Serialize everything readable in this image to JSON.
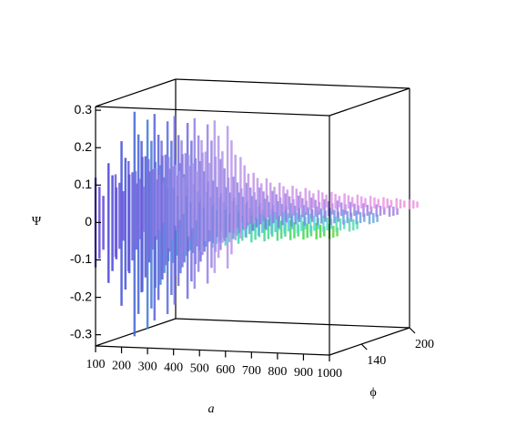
{
  "chart_data": {
    "type": "surface3d",
    "x_label": "a",
    "y_label": "ϕ",
    "z_label": "Ψ",
    "x": [
      100,
      150,
      200,
      250,
      300,
      350,
      400,
      450,
      500,
      550,
      600,
      650,
      700,
      750,
      800,
      850,
      900,
      950,
      1000
    ],
    "phi": [
      100,
      125,
      150,
      175,
      200
    ],
    "values": [
      0.12,
      0.16,
      0.22,
      0.3,
      0.28,
      0.16,
      0.1,
      0.08,
      0.065,
      0.055,
      0.048,
      0.042,
      0.037,
      0.033,
      0.03,
      0.027,
      0.024,
      0.022,
      0.02
    ],
    "xlim": [
      100,
      1000
    ],
    "ylim": [
      100,
      200
    ],
    "zlim": [
      -0.33,
      0.31
    ],
    "xticks": [
      100,
      200,
      300,
      400,
      500,
      600,
      700,
      800,
      900,
      1000
    ],
    "yticks": [
      140,
      200
    ],
    "zticks": [
      0.3,
      0.2,
      0.1,
      0,
      -0.1,
      -0.2,
      -0.3
    ]
  }
}
